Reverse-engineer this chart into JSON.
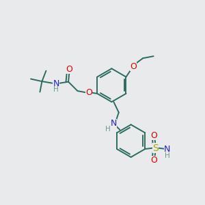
{
  "background_color": "#e8eaec",
  "bond_color": "#2d6b5e",
  "atom_colors": {
    "O": "#dd0000",
    "N": "#2222cc",
    "S": "#aaaa00",
    "H": "#6a9a8a",
    "C": "#2d6b5e"
  },
  "figsize": [
    3.0,
    3.0
  ],
  "dpi": 100
}
